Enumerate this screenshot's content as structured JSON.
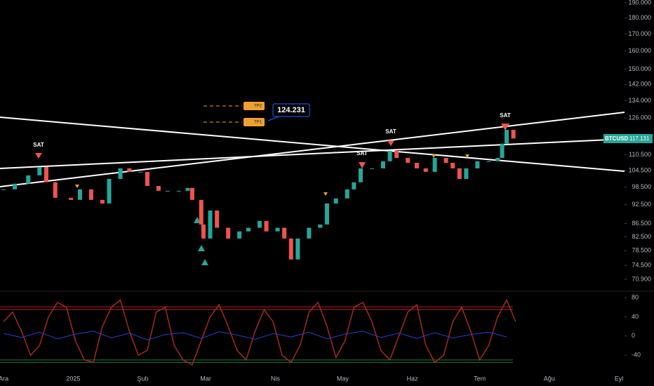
{
  "chart_data": [
    {
      "type": "candlestick",
      "x": [
        0,
        5,
        11,
        16,
        19,
        23,
        30,
        34,
        39,
        44,
        47,
        52,
        56,
        61,
        64,
        69,
        73,
        78,
        82,
        84,
        88,
        89,
        92,
        95,
        100,
        105,
        109,
        114,
        117,
        122,
        125,
        128,
        131,
        136,
        141,
        144,
        148,
        153,
        156,
        159,
        164,
        169,
        172,
        175,
        180,
        184,
        188,
        192,
        197,
        200,
        203,
        206,
        211,
        216,
        220,
        222,
        224,
        227
      ],
      "series": [
        {
          "name": "BTCUSD",
          "up_color": "#26a69a",
          "down_color": "#ef5350",
          "values": [
            97700,
            99700,
            102700,
            105800,
            100200,
            94800,
            94100,
            97700,
            94100,
            92900,
            101400,
            105300,
            104000,
            104000,
            98900,
            97200,
            97200,
            97200,
            98200,
            94100,
            86200,
            82000,
            90600,
            85200,
            82000,
            84100,
            85200,
            87300,
            84100,
            85200,
            82000,
            76100,
            82000,
            85200,
            86200,
            92900,
            94600,
            97700,
            100200,
            105300,
            105300,
            108000,
            112100,
            109300,
            107400,
            105300,
            104000,
            109300,
            107400,
            105300,
            101400,
            105300,
            108000,
            108000,
            109300,
            115000,
            120800,
            117131
          ]
        }
      ],
      "last_price_label": "117.131",
      "log_scale": true,
      "grid": false,
      "xlim": [
        -1.6,
        276.5
      ],
      "xticks": [
        {
          "value": 0,
          "label": "Ara"
        },
        {
          "value": 31,
          "label": "2025"
        },
        {
          "value": 62,
          "label": "Şub"
        },
        {
          "value": 90,
          "label": "Mar"
        },
        {
          "value": 121,
          "label": "Nis"
        },
        {
          "value": 151,
          "label": "May"
        },
        {
          "value": 182,
          "label": "Haz"
        },
        {
          "value": 212,
          "label": "Tem"
        },
        {
          "value": 243,
          "label": "Ağu"
        },
        {
          "value": 274,
          "label": "Eyl"
        }
      ],
      "ylim": [
        68800,
        191900
      ],
      "yticks": [
        {
          "value": 190000,
          "label": "190.000"
        },
        {
          "value": 180000,
          "label": "180.000"
        },
        {
          "value": 170000,
          "label": "170.000"
        },
        {
          "value": 160000,
          "label": "160.000"
        },
        {
          "value": 150000,
          "label": "150.000"
        },
        {
          "value": 142000,
          "label": "142.000"
        },
        {
          "value": 134000,
          "label": "134.000"
        },
        {
          "value": 126000,
          "label": "126.000"
        },
        {
          "value": 110500,
          "label": "110.500"
        },
        {
          "value": 104500,
          "label": "104.500"
        },
        {
          "value": 98500,
          "label": "98.500"
        },
        {
          "value": 92500,
          "label": "92.500"
        },
        {
          "value": 86500,
          "label": "86.500"
        },
        {
          "value": 82500,
          "label": "82.500"
        },
        {
          "value": 78500,
          "label": "78.500"
        },
        {
          "value": 74500,
          "label": "74.500"
        },
        {
          "value": 70900,
          "label": "70.900"
        }
      ],
      "annotations": [
        "SAT",
        "SAT",
        "SAT",
        "SAT"
      ],
      "targets": [
        "TP2",
        "TP1"
      ],
      "callout": "124.231"
    },
    {
      "type": "line",
      "x": [
        0,
        4,
        8,
        12,
        16,
        20,
        24,
        28,
        32,
        36,
        40,
        44,
        48,
        52,
        56,
        60,
        64,
        68,
        72,
        76,
        80,
        84,
        88,
        92,
        96,
        100,
        104,
        108,
        112,
        116,
        120,
        124,
        128,
        132,
        136,
        140,
        144,
        148,
        152,
        156,
        160,
        164,
        168,
        172,
        176,
        180,
        184,
        188,
        192,
        196,
        200,
        204,
        208,
        212,
        216,
        220,
        224,
        228
      ],
      "xlim": [
        -1.6,
        276.5
      ],
      "series": [
        {
          "color": "#a52a1a",
          "values": [
            30,
            50,
            10,
            -40,
            -20,
            40,
            70,
            60,
            -10,
            -50,
            -55,
            20,
            60,
            75,
            10,
            -40,
            -30,
            50,
            60,
            -20,
            -50,
            -60,
            -10,
            40,
            65,
            20,
            -30,
            -50,
            10,
            55,
            30,
            -40,
            -55,
            -20,
            50,
            70,
            20,
            -45,
            -10,
            60,
            70,
            30,
            -30,
            -50,
            0,
            50,
            65,
            -20,
            -55,
            -40,
            30,
            60,
            10,
            -50,
            -20,
            40,
            75,
            30
          ]
        },
        {
          "color": "#2a3fd0",
          "x": [
            0,
            8,
            16,
            24,
            32,
            40,
            48,
            56,
            64,
            72,
            80,
            88,
            96,
            104,
            112,
            120,
            128,
            136,
            144,
            152,
            160,
            168,
            176,
            184,
            192,
            200,
            208,
            216,
            224
          ],
          "values": [
            5,
            -3,
            8,
            -6,
            4,
            10,
            -4,
            6,
            -8,
            3,
            7,
            -5,
            9,
            2,
            -7,
            5,
            -2,
            8,
            -6,
            4,
            10,
            -3,
            6,
            -5,
            7,
            -4,
            3,
            8,
            -2
          ]
        }
      ],
      "levels": [
        {
          "value": 61,
          "color": "#b22222"
        },
        {
          "value": 55,
          "color": "#b22222"
        },
        {
          "value": -50,
          "color": "#1e7b34"
        },
        {
          "value": -55,
          "color": "#1e7b34"
        }
      ],
      "ylim": [
        -75,
        86
      ],
      "yticks": [
        80,
        40,
        0,
        -40
      ]
    }
  ]
}
